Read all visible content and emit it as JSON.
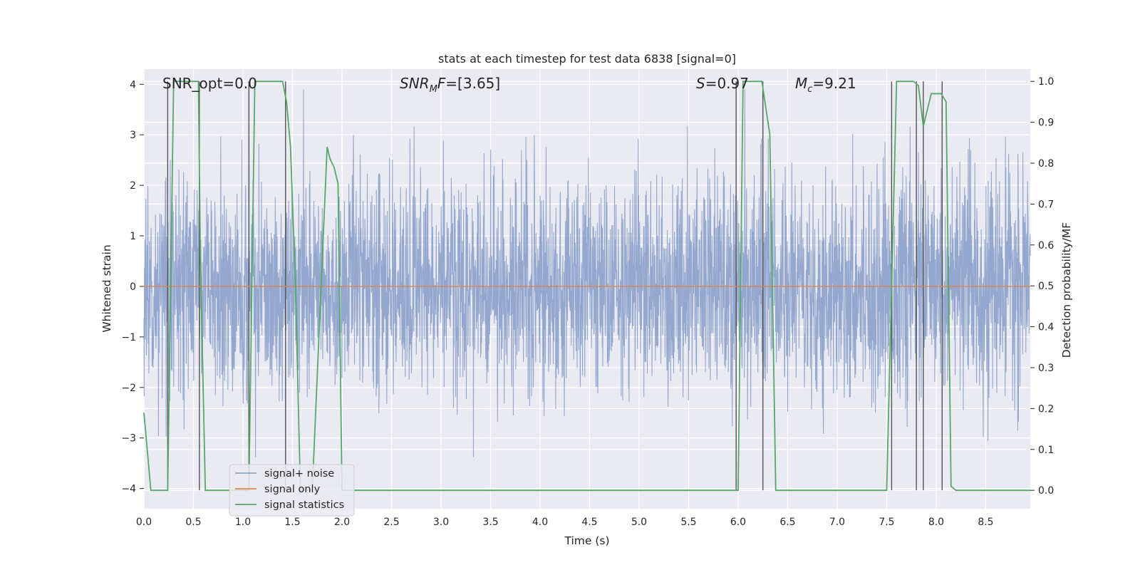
{
  "chart_data": {
    "type": "line",
    "title": "stats at each timestep for test data 6838 [signal=0]",
    "xlabel": "Time (s)",
    "ylabel": "Whitened strain",
    "y2label": "Detection probability/MF",
    "xlim": [
      0,
      8.95
    ],
    "ylim": [
      -4.4,
      4.3
    ],
    "y2lim": [
      -0.045,
      1.03
    ],
    "grid": true,
    "legend_placement": "lower-left",
    "xticks": [
      "0.0",
      "0.5",
      "1.0",
      "1.5",
      "2.0",
      "2.5",
      "3.0",
      "3.5",
      "4.0",
      "4.5",
      "5.0",
      "5.5",
      "6.0",
      "6.5",
      "7.0",
      "7.5",
      "8.0",
      "8.5"
    ],
    "yticks": [
      "−4",
      "−3",
      "−2",
      "−1",
      "0",
      "1",
      "2",
      "3",
      "4"
    ],
    "y2ticks": [
      "0.0",
      "0.1",
      "0.2",
      "0.3",
      "0.4",
      "0.5",
      "0.6",
      "0.7",
      "0.8",
      "0.9",
      "1.0"
    ],
    "annotations": {
      "snr_opt": "SNR_opt=0.0",
      "snr_mf_main": "SNR",
      "snr_mf_sub": "M",
      "snr_mf_rest": "F=[3.65]",
      "s_main": "S",
      "s_rest": "=0.97",
      "mc_main": "M",
      "mc_sub": "c",
      "mc_rest": "=9.21"
    },
    "colors": {
      "noise": "#8fa3cc",
      "signal": "#dd8452",
      "stats": "#55a868",
      "markers": "#555555",
      "background": "#eaeaf2"
    },
    "series": [
      {
        "name": "signal+ noise",
        "description_values": "whitened strain noise, approx. gaussian between -3.6 and 3.9",
        "amplitude_sigma": 1.0
      },
      {
        "name": "signal only",
        "values_constant": 0.0
      },
      {
        "name": "signal statistics",
        "axis": "right",
        "x": [
          0.0,
          0.07,
          0.12,
          0.24,
          0.3,
          0.55,
          0.57,
          0.62,
          0.7,
          0.8,
          1.0,
          1.06,
          1.12,
          1.4,
          1.44,
          1.48,
          1.53,
          1.58,
          1.7,
          1.85,
          1.88,
          1.92,
          1.96,
          2.0,
          2.05,
          2.2,
          6.0,
          6.05,
          6.24,
          6.32,
          6.38,
          6.5,
          7.4,
          7.5,
          7.6,
          7.77,
          7.82,
          7.87,
          7.95,
          8.05,
          8.1,
          8.15,
          8.2,
          8.95
        ],
        "y": [
          0.19,
          0.0,
          0.0,
          0.0,
          1.0,
          1.0,
          0.57,
          0.0,
          0.0,
          0.0,
          0.0,
          0.0,
          1.0,
          1.0,
          0.95,
          0.84,
          0.5,
          0.0,
          0.0,
          0.84,
          0.81,
          0.79,
          0.75,
          0.0,
          0.0,
          0.0,
          0.0,
          1.0,
          1.0,
          0.87,
          0.0,
          0.0,
          0.0,
          0.0,
          1.0,
          1.0,
          0.99,
          0.89,
          0.97,
          0.97,
          0.95,
          0.01,
          0.0,
          0.0
        ]
      }
    ],
    "marker_lines_x": [
      0.24,
      0.56,
      1.06,
      1.43,
      5.98,
      6.25,
      7.55,
      7.8,
      7.87,
      8.06
    ],
    "legend": {
      "items": [
        {
          "label": "signal+ noise",
          "color": "#8fa3cc"
        },
        {
          "label": "signal only",
          "color": "#dd8452"
        },
        {
          "label": "signal statistics",
          "color": "#55a868"
        }
      ]
    }
  }
}
